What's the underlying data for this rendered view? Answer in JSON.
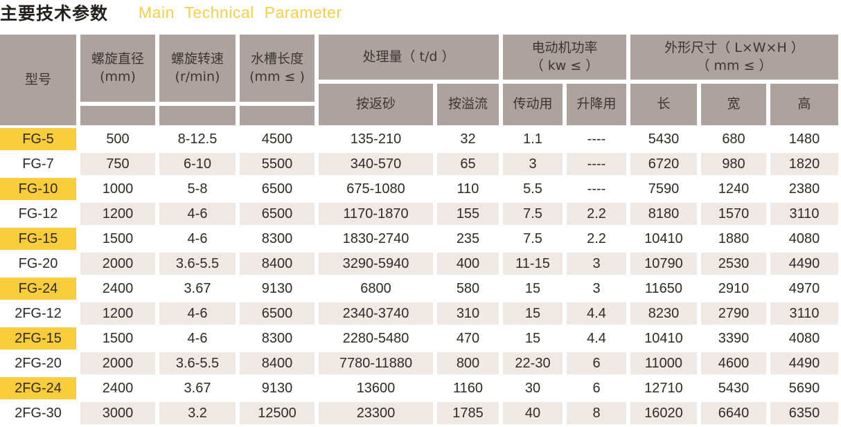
{
  "title": {
    "cn": "主要技术参数",
    "en": "Main Technical Parameter"
  },
  "headers": {
    "model": "型号",
    "diameter": "螺旋直径\n(mm)",
    "speed": "螺旋转速\n(r/min)",
    "tank_length": "水槽长度\n(mm ≤ )",
    "capacity": "处理量（ t/d ）",
    "capacity_sand": "按返砂",
    "capacity_overflow": "按溢流",
    "motor_power": "电动机功率\n（ kw ≤ ）",
    "motor_drive": "传动用",
    "motor_lift": "升降用",
    "dimensions": "外形尺寸（ L×W×H ）\n（ mm ≤ ）",
    "length": "长",
    "width": "宽",
    "height": "高"
  },
  "highlight_color": "#f7cd3c",
  "rows": [
    [
      "FG-5",
      "500",
      "8-12.5",
      "4500",
      "135-210",
      "32",
      "1.1",
      "----",
      "5430",
      "680",
      "1480"
    ],
    [
      "FG-7",
      "750",
      "6-10",
      "5500",
      "340-570",
      "65",
      "3",
      "----",
      "6720",
      "980",
      "1820"
    ],
    [
      "FG-10",
      "1000",
      "5-8",
      "6500",
      "675-1080",
      "110",
      "5.5",
      "----",
      "7590",
      "1240",
      "2380"
    ],
    [
      "FG-12",
      "1200",
      "4-6",
      "6500",
      "1170-1870",
      "155",
      "7.5",
      "2.2",
      "8180",
      "1570",
      "3110"
    ],
    [
      "FG-15",
      "1500",
      "4-6",
      "8300",
      "1830-2740",
      "235",
      "7.5",
      "2.2",
      "10410",
      "1880",
      "4080"
    ],
    [
      "FG-20",
      "2000",
      "3.6-5.5",
      "8400",
      "3290-5940",
      "400",
      "11-15",
      "3",
      "10790",
      "2530",
      "4490"
    ],
    [
      "FG-24",
      "2400",
      "3.67",
      "9130",
      "6800",
      "580",
      "15",
      "3",
      "11650",
      "2910",
      "4970"
    ],
    [
      "2FG-12",
      "1200",
      "4-6",
      "6500",
      "2340-3740",
      "310",
      "15",
      "4.4",
      "8230",
      "2790",
      "3110"
    ],
    [
      "2FG-15",
      "1500",
      "4-6",
      "8300",
      "2280-5480",
      "470",
      "15",
      "4.4",
      "10410",
      "3390",
      "4080"
    ],
    [
      "2FG-20",
      "2000",
      "3.6-5.5",
      "8400",
      "7780-11880",
      "800",
      "22-30",
      "6",
      "11000",
      "4600",
      "4490"
    ],
    [
      "2FG-24",
      "2400",
      "3.67",
      "9130",
      "13600",
      "1160",
      "30",
      "6",
      "12710",
      "5430",
      "5690"
    ],
    [
      "2FG-30",
      "3000",
      "3.2",
      "12500",
      "23300",
      "1785",
      "40",
      "8",
      "16020",
      "6640",
      "6350"
    ]
  ]
}
